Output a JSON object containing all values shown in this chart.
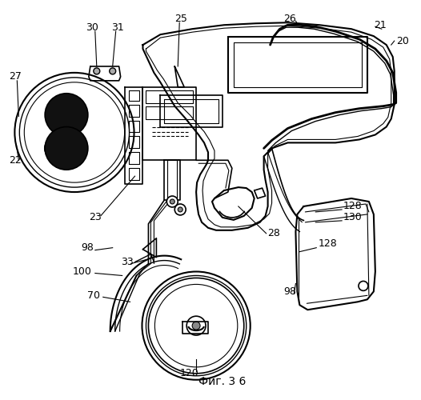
{
  "fig_label": "Фиг. 3 6",
  "bg_color": "#ffffff",
  "line_color": "#000000"
}
